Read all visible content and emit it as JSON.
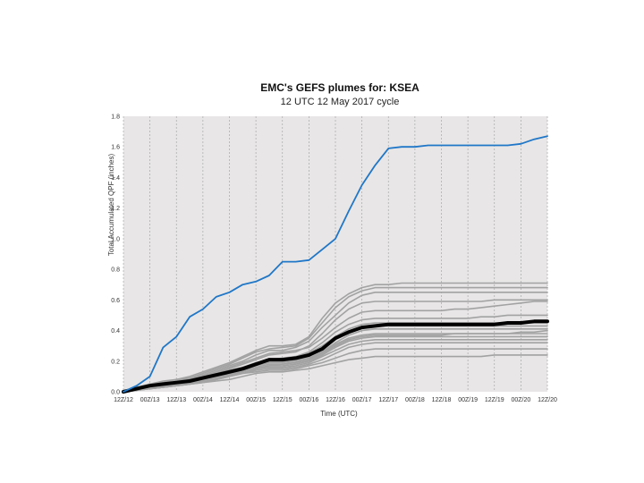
{
  "chart_data": {
    "type": "line",
    "title": "EMC's GEFS plumes for: KSEA",
    "subtitle": "12 UTC 12 May 2017 cycle",
    "xlabel": "Time (UTC)",
    "ylabel": "Total Accumulated QPF (inches)",
    "ylim": [
      0,
      1.8
    ],
    "yticks": [
      0.0,
      0.2,
      0.4,
      0.6,
      0.8,
      1.0,
      1.2,
      1.4,
      1.6,
      1.8
    ],
    "ytick_labels": [
      "0.0",
      "0.2",
      "0.4",
      "0.6",
      "0.8",
      "1.0",
      "1.2",
      "1.4",
      "1.6",
      "1.8"
    ],
    "x_hours": [
      0,
      6,
      12,
      18,
      24,
      30,
      36,
      42,
      48,
      54,
      60,
      66,
      72,
      78,
      84,
      90,
      96,
      102,
      108,
      114,
      120,
      126,
      132,
      138,
      144,
      150,
      156,
      162,
      168,
      174,
      180,
      186,
      192
    ],
    "x_tick_labels": [
      "12Z/12",
      "00Z/13",
      "12Z/13",
      "00Z/14",
      "12Z/14",
      "00Z/15",
      "12Z/15",
      "00Z/16",
      "12Z/16",
      "00Z/17",
      "12Z/17",
      "00Z/18",
      "12Z/18",
      "00Z/19",
      "12Z/19",
      "00Z/20",
      "12Z/20"
    ],
    "x_tick_hours": [
      0,
      12,
      24,
      36,
      48,
      60,
      72,
      84,
      96,
      108,
      120,
      132,
      144,
      156,
      168,
      180,
      192
    ],
    "grid": true,
    "colors": {
      "background": "#e8e6e6",
      "grid": "#a8a8a8",
      "members": "#a2a2a2",
      "mean": "#000000",
      "outlier": "#1f77c8"
    },
    "series": [
      {
        "role": "outlier",
        "values": [
          0.0,
          0.04,
          0.1,
          0.29,
          0.36,
          0.49,
          0.54,
          0.62,
          0.65,
          0.7,
          0.72,
          0.76,
          0.85,
          0.85,
          0.86,
          0.93,
          1.0,
          1.18,
          1.35,
          1.48,
          1.59,
          1.6,
          1.6,
          1.61,
          1.61,
          1.61,
          1.61,
          1.61,
          1.61,
          1.61,
          1.62,
          1.65,
          1.67
        ]
      },
      {
        "role": "mean",
        "values": [
          0.0,
          0.02,
          0.04,
          0.05,
          0.06,
          0.07,
          0.09,
          0.11,
          0.13,
          0.15,
          0.18,
          0.21,
          0.21,
          0.22,
          0.24,
          0.28,
          0.35,
          0.39,
          0.42,
          0.43,
          0.44,
          0.44,
          0.44,
          0.44,
          0.44,
          0.44,
          0.44,
          0.44,
          0.44,
          0.45,
          0.45,
          0.46,
          0.46
        ]
      },
      {
        "role": "member",
        "values": [
          0.0,
          0.03,
          0.05,
          0.06,
          0.08,
          0.1,
          0.13,
          0.16,
          0.19,
          0.23,
          0.27,
          0.3,
          0.3,
          0.31,
          0.36,
          0.48,
          0.58,
          0.64,
          0.68,
          0.7,
          0.7,
          0.71,
          0.71,
          0.71,
          0.71,
          0.71,
          0.71,
          0.71,
          0.71,
          0.71,
          0.71,
          0.71,
          0.71
        ]
      },
      {
        "role": "member",
        "values": [
          0.0,
          0.02,
          0.05,
          0.07,
          0.08,
          0.09,
          0.12,
          0.15,
          0.18,
          0.22,
          0.26,
          0.28,
          0.29,
          0.3,
          0.35,
          0.45,
          0.55,
          0.62,
          0.66,
          0.68,
          0.68,
          0.68,
          0.68,
          0.68,
          0.68,
          0.68,
          0.68,
          0.68,
          0.68,
          0.68,
          0.68,
          0.68,
          0.68
        ]
      },
      {
        "role": "member",
        "values": [
          0.0,
          0.02,
          0.04,
          0.05,
          0.07,
          0.09,
          0.11,
          0.14,
          0.17,
          0.2,
          0.24,
          0.27,
          0.27,
          0.29,
          0.33,
          0.42,
          0.5,
          0.58,
          0.63,
          0.65,
          0.65,
          0.65,
          0.65,
          0.65,
          0.65,
          0.65,
          0.65,
          0.65,
          0.65,
          0.65,
          0.65,
          0.65,
          0.65
        ]
      },
      {
        "role": "member",
        "values": [
          0.0,
          0.02,
          0.04,
          0.05,
          0.06,
          0.08,
          0.1,
          0.12,
          0.15,
          0.18,
          0.21,
          0.24,
          0.25,
          0.26,
          0.3,
          0.38,
          0.47,
          0.54,
          0.58,
          0.59,
          0.59,
          0.59,
          0.59,
          0.59,
          0.59,
          0.59,
          0.59,
          0.59,
          0.6,
          0.6,
          0.6,
          0.6,
          0.6
        ]
      },
      {
        "role": "member",
        "values": [
          0.0,
          0.02,
          0.04,
          0.05,
          0.06,
          0.08,
          0.1,
          0.13,
          0.16,
          0.19,
          0.22,
          0.25,
          0.26,
          0.27,
          0.29,
          0.35,
          0.42,
          0.48,
          0.52,
          0.53,
          0.53,
          0.53,
          0.53,
          0.53,
          0.53,
          0.54,
          0.54,
          0.55,
          0.56,
          0.57,
          0.58,
          0.59,
          0.59
        ]
      },
      {
        "role": "member",
        "values": [
          0.0,
          0.02,
          0.03,
          0.04,
          0.05,
          0.07,
          0.09,
          0.11,
          0.14,
          0.16,
          0.19,
          0.21,
          0.22,
          0.23,
          0.26,
          0.32,
          0.39,
          0.44,
          0.47,
          0.48,
          0.48,
          0.48,
          0.48,
          0.48,
          0.48,
          0.48,
          0.48,
          0.49,
          0.49,
          0.5,
          0.5,
          0.5,
          0.5
        ]
      },
      {
        "role": "member",
        "values": [
          0.0,
          0.02,
          0.04,
          0.05,
          0.06,
          0.08,
          0.1,
          0.12,
          0.14,
          0.16,
          0.18,
          0.2,
          0.2,
          0.21,
          0.23,
          0.28,
          0.34,
          0.39,
          0.42,
          0.43,
          0.43,
          0.43,
          0.43,
          0.43,
          0.43,
          0.43,
          0.43,
          0.43,
          0.43,
          0.43,
          0.43,
          0.43,
          0.43
        ]
      },
      {
        "role": "member",
        "values": [
          0.0,
          0.01,
          0.03,
          0.04,
          0.05,
          0.06,
          0.08,
          0.1,
          0.12,
          0.14,
          0.16,
          0.18,
          0.18,
          0.19,
          0.21,
          0.26,
          0.32,
          0.37,
          0.4,
          0.41,
          0.41,
          0.41,
          0.41,
          0.41,
          0.41,
          0.41,
          0.41,
          0.41,
          0.41,
          0.41,
          0.41,
          0.41,
          0.41
        ]
      },
      {
        "role": "member",
        "values": [
          0.0,
          0.02,
          0.04,
          0.05,
          0.06,
          0.07,
          0.09,
          0.11,
          0.13,
          0.15,
          0.17,
          0.19,
          0.19,
          0.2,
          0.22,
          0.26,
          0.31,
          0.35,
          0.37,
          0.38,
          0.38,
          0.38,
          0.38,
          0.38,
          0.38,
          0.38,
          0.38,
          0.38,
          0.38,
          0.38,
          0.38,
          0.38,
          0.38
        ]
      },
      {
        "role": "member",
        "values": [
          0.0,
          0.01,
          0.03,
          0.04,
          0.05,
          0.06,
          0.08,
          0.1,
          0.12,
          0.13,
          0.15,
          0.17,
          0.17,
          0.18,
          0.2,
          0.24,
          0.29,
          0.33,
          0.35,
          0.36,
          0.36,
          0.36,
          0.36,
          0.36,
          0.36,
          0.36,
          0.36,
          0.36,
          0.36,
          0.36,
          0.36,
          0.36,
          0.36
        ]
      },
      {
        "role": "member",
        "values": [
          0.0,
          0.02,
          0.03,
          0.04,
          0.05,
          0.06,
          0.07,
          0.09,
          0.11,
          0.13,
          0.15,
          0.16,
          0.16,
          0.17,
          0.19,
          0.23,
          0.27,
          0.31,
          0.33,
          0.34,
          0.34,
          0.34,
          0.34,
          0.34,
          0.34,
          0.34,
          0.34,
          0.34,
          0.34,
          0.34,
          0.34,
          0.34,
          0.34
        ]
      },
      {
        "role": "member",
        "values": [
          0.0,
          0.01,
          0.02,
          0.03,
          0.04,
          0.05,
          0.07,
          0.08,
          0.1,
          0.12,
          0.14,
          0.15,
          0.15,
          0.16,
          0.18,
          0.21,
          0.25,
          0.29,
          0.31,
          0.32,
          0.32,
          0.32,
          0.32,
          0.32,
          0.32,
          0.32,
          0.32,
          0.32,
          0.32,
          0.32,
          0.32,
          0.32,
          0.32
        ]
      },
      {
        "role": "member",
        "values": [
          0.0,
          0.01,
          0.02,
          0.03,
          0.04,
          0.05,
          0.06,
          0.08,
          0.1,
          0.12,
          0.13,
          0.14,
          0.14,
          0.15,
          0.17,
          0.19,
          0.22,
          0.25,
          0.27,
          0.28,
          0.28,
          0.28,
          0.28,
          0.28,
          0.28,
          0.28,
          0.28,
          0.28,
          0.28,
          0.28,
          0.28,
          0.28,
          0.28
        ]
      },
      {
        "role": "member",
        "values": [
          0.0,
          0.01,
          0.02,
          0.03,
          0.04,
          0.05,
          0.06,
          0.07,
          0.08,
          0.1,
          0.12,
          0.13,
          0.13,
          0.14,
          0.15,
          0.17,
          0.19,
          0.21,
          0.22,
          0.23,
          0.23,
          0.23,
          0.23,
          0.23,
          0.23,
          0.23,
          0.23,
          0.23,
          0.24,
          0.24,
          0.24,
          0.24,
          0.24
        ]
      },
      {
        "role": "member",
        "values": [
          0.0,
          0.01,
          0.02,
          0.03,
          0.04,
          0.05,
          0.07,
          0.09,
          0.11,
          0.13,
          0.15,
          0.17,
          0.18,
          0.19,
          0.21,
          0.25,
          0.3,
          0.34,
          0.36,
          0.37,
          0.37,
          0.37,
          0.37,
          0.37,
          0.37,
          0.38,
          0.38,
          0.38,
          0.38,
          0.38,
          0.39,
          0.39,
          0.4
        ]
      },
      {
        "role": "member",
        "values": [
          0.0,
          0.02,
          0.03,
          0.04,
          0.05,
          0.07,
          0.09,
          0.11,
          0.13,
          0.15,
          0.18,
          0.2,
          0.21,
          0.22,
          0.25,
          0.3,
          0.36,
          0.41,
          0.44,
          0.45,
          0.45,
          0.45,
          0.45,
          0.45,
          0.45,
          0.45,
          0.45,
          0.45,
          0.45,
          0.45,
          0.45,
          0.45,
          0.45
        ]
      }
    ]
  }
}
